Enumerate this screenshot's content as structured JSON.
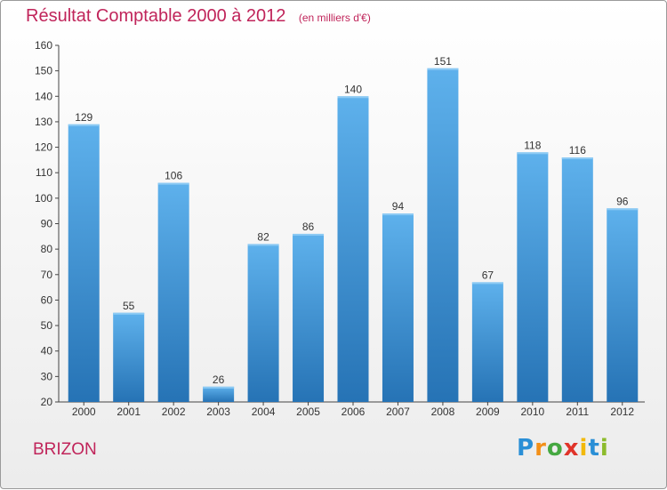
{
  "title": "Résultat Comptable 2000 à 2012",
  "subtitle": "(en milliers d'€)",
  "commune": "BRIZON",
  "logo": {
    "letters": [
      "P",
      "r",
      "o",
      "x",
      "i",
      "t",
      "i"
    ],
    "colors": [
      "#2a8fd6",
      "#f39019",
      "#45a841",
      "#e0342a",
      "#f2b90c",
      "#2a8fd6",
      "#8dbb2c"
    ]
  },
  "colors": {
    "title": "#c0245a",
    "bar_light": "#5aaeea",
    "bar_dark": "#2a78b8"
  },
  "chart_data": {
    "type": "bar",
    "title": "Résultat Comptable 2000 à 2012",
    "categories": [
      "2000",
      "2001",
      "2002",
      "2003",
      "2004",
      "2005",
      "2006",
      "2007",
      "2008",
      "2009",
      "2010",
      "2011",
      "2012"
    ],
    "values": [
      129,
      55,
      106,
      26,
      82,
      86,
      140,
      94,
      151,
      67,
      118,
      116,
      96
    ],
    "ylim": [
      20,
      160
    ],
    "yticks": [
      20,
      30,
      40,
      50,
      60,
      70,
      80,
      90,
      100,
      110,
      120,
      130,
      140,
      150,
      160
    ],
    "xlabel": "",
    "ylabel": "",
    "grid": false
  }
}
